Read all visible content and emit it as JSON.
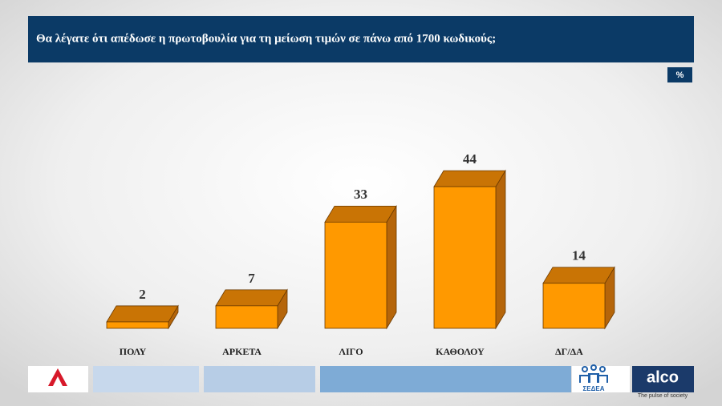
{
  "chart_data": {
    "type": "bar",
    "title": "Θα λέγατε ότι απέδωσε η πρωτοβουλία για τη μείωση τιμών σε πάνω από 1700 κωδικούς;",
    "unit_label": "%",
    "categories": [
      "ΠΟΛΥ",
      "ΑΡΚΕΤΑ",
      "ΛΙΓΟ",
      "ΚΑΘΟΛΟΥ",
      "ΔΓ/ΔΑ"
    ],
    "values": [
      2,
      7,
      33,
      44,
      14
    ],
    "color": "#ff9900",
    "footer": {
      "brand": "alco",
      "tagline": "The pulse of society",
      "partner": "ΣΕΔΕΑ"
    }
  }
}
